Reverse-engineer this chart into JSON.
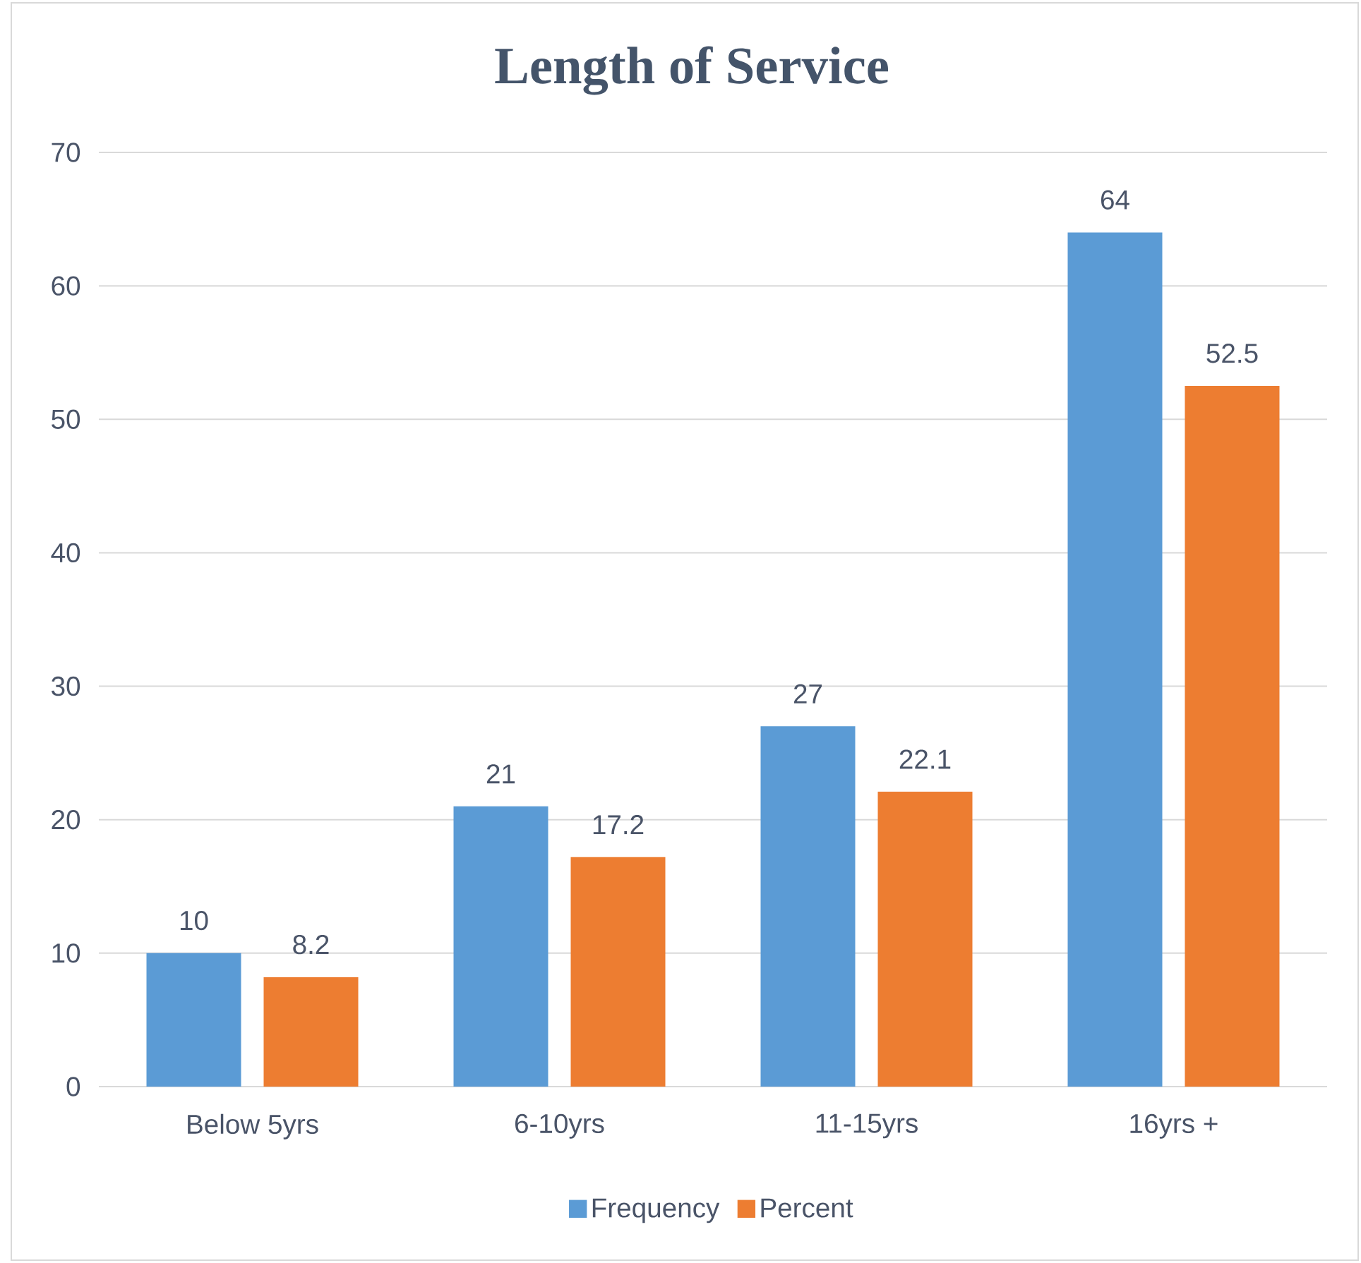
{
  "chart_data": {
    "type": "bar",
    "title": "Length of Service",
    "categories": [
      "Below 5yrs",
      "6-10yrs",
      "11-15yrs",
      "16yrs +"
    ],
    "series": [
      {
        "name": "Frequency",
        "color": "#5b9bd5",
        "values": [
          10,
          21,
          27,
          64
        ]
      },
      {
        "name": "Percent",
        "color": "#ed7d31",
        "values": [
          8.2,
          17.2,
          22.1,
          52.5
        ]
      }
    ],
    "ylim": [
      0,
      70
    ],
    "yticks": [
      0,
      10,
      20,
      30,
      40,
      50,
      60,
      70
    ],
    "grid": "y",
    "legend": "bottom",
    "data_labels": true
  }
}
